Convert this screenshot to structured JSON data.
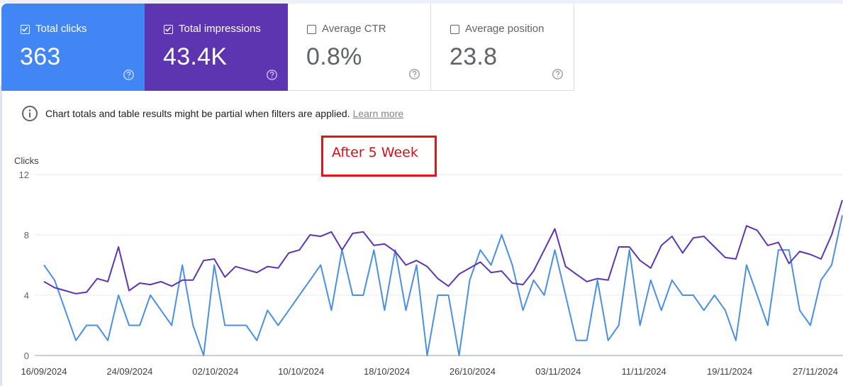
{
  "metrics": [
    {
      "label": "Total clicks",
      "value": "363",
      "checked": true,
      "color": "#4285f4"
    },
    {
      "label": "Total impressions",
      "value": "43.4K",
      "checked": true,
      "color": "#5e35b1"
    },
    {
      "label": "Average CTR",
      "value": "0.8%",
      "checked": false
    },
    {
      "label": "Average position",
      "value": "23.8",
      "checked": false
    }
  ],
  "icons": {
    "help": "help-circle-icon",
    "info": "info-icon",
    "checkbox": "checkbox-icon"
  },
  "notice": {
    "text": "Chart totals and table results might be partial when filters are applied.",
    "link": "Learn more"
  },
  "annotation": "After 5 Week",
  "chart_data": {
    "type": "line",
    "ylabel": "Clicks",
    "ylim": [
      0,
      12
    ],
    "yticks": [
      0,
      4,
      8,
      12
    ],
    "x_tick_labels": [
      "16/09/2024",
      "24/09/2024",
      "02/10/2024",
      "10/10/2024",
      "18/10/2024",
      "26/10/2024",
      "03/11/2024",
      "11/11/2024",
      "19/11/2024",
      "27/11/2024"
    ],
    "x_start": "16/09/2024",
    "x_end": "28/11/2024",
    "grid": true,
    "series": [
      {
        "metric": "Total clicks",
        "color": "#4a90e2",
        "values": [
          6,
          5,
          3,
          1,
          2,
          2,
          1,
          4,
          2,
          2,
          4,
          3,
          2,
          6,
          2,
          0,
          6,
          2,
          2,
          2,
          1,
          3,
          2,
          3,
          4,
          5,
          6,
          3,
          7,
          4,
          4,
          7,
          3,
          7,
          3,
          6,
          0,
          4,
          4,
          0,
          5,
          7,
          6,
          8,
          6,
          3,
          5,
          4,
          7,
          4,
          1,
          1,
          5,
          1,
          2,
          7,
          2,
          5,
          3,
          5,
          4,
          4,
          3,
          4,
          3,
          1,
          6,
          4,
          2,
          7,
          7,
          3,
          2,
          5,
          6,
          9.3
        ]
      },
      {
        "metric": "Total impressions",
        "color": "#5e35b1",
        "values": [
          4.9,
          4.5,
          4.3,
          4.1,
          4.2,
          5.1,
          4.9,
          7.2,
          4.3,
          4.8,
          4.7,
          4.9,
          4.6,
          5.0,
          5.0,
          6.3,
          6.4,
          5.2,
          5.9,
          5.7,
          5.5,
          5.9,
          5.8,
          6.8,
          7.0,
          8.0,
          7.9,
          8.2,
          7.0,
          8.1,
          8.2,
          7.3,
          7.4,
          6.9,
          6.0,
          6.3,
          5.9,
          5.1,
          4.6,
          5.4,
          5.8,
          6.2,
          5.5,
          5.6,
          4.8,
          4.7,
          5.6,
          7.0,
          8.4,
          5.9,
          5.4,
          4.9,
          5.1,
          5.0,
          7.2,
          7.2,
          6.3,
          5.8,
          7.3,
          7.9,
          6.8,
          7.8,
          7.9,
          7.2,
          6.5,
          6.4,
          8.6,
          8.3,
          7.3,
          7.5,
          6.1,
          6.9,
          6.7,
          6.4,
          8.0,
          10.3
        ]
      }
    ]
  }
}
